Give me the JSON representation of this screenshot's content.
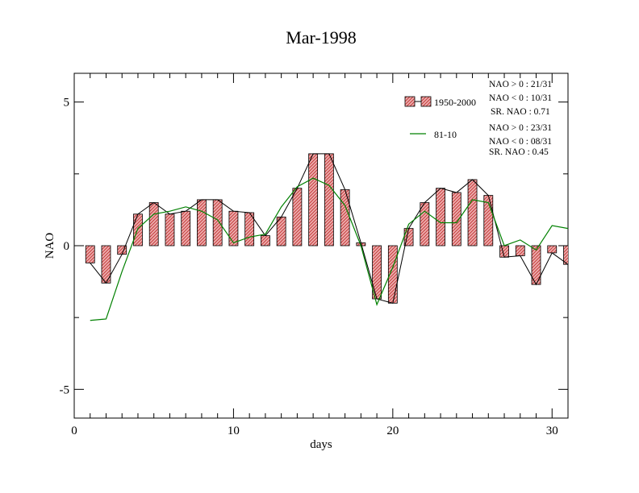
{
  "chart_data": {
    "type": "bar",
    "title": "Mar-1998",
    "xlabel": "days",
    "ylabel": "NAO",
    "xlim": [
      0,
      31
    ],
    "ylim": [
      -6,
      6
    ],
    "xticks": [
      "0",
      "10",
      "20",
      "30"
    ],
    "yticks": [
      "5",
      "0",
      "-5"
    ],
    "grid": false,
    "legend_position": "top-right",
    "colors": {
      "bar_fill": "#e8a0a0",
      "bar_hatch": "#c0392b",
      "line1": "#000000",
      "line2": "#008000"
    },
    "days": [
      1,
      2,
      3,
      4,
      5,
      6,
      7,
      8,
      9,
      10,
      11,
      12,
      13,
      14,
      15,
      16,
      17,
      18,
      19,
      20,
      21,
      22,
      23,
      24,
      25,
      26,
      27,
      28,
      29,
      30,
      31
    ],
    "series": [
      {
        "name": "1950-2000",
        "type": "bar",
        "values": [
          -0.6,
          -1.3,
          -0.3,
          1.1,
          1.5,
          1.1,
          1.2,
          1.6,
          1.6,
          1.2,
          1.15,
          0.35,
          1.0,
          2.0,
          3.2,
          3.2,
          1.95,
          0.1,
          -1.85,
          -2.0,
          0.6,
          1.5,
          2.0,
          1.85,
          2.3,
          1.75,
          -0.4,
          -0.35,
          -1.35,
          -0.25,
          -0.65
        ]
      },
      {
        "name": "81-10",
        "type": "line",
        "values": [
          -2.6,
          -2.55,
          -0.9,
          0.6,
          1.1,
          1.2,
          1.35,
          1.2,
          0.9,
          0.1,
          0.3,
          0.4,
          1.35,
          2.05,
          2.35,
          2.1,
          1.4,
          0.0,
          -2.05,
          -0.75,
          0.75,
          1.2,
          0.8,
          0.8,
          1.6,
          1.5,
          0.0,
          0.2,
          -0.15,
          0.7,
          0.6
        ]
      }
    ],
    "annotations": {
      "group1": [
        "NAO > 0 : 21/31",
        "NAO < 0 : 10/31",
        "SR. NAO :  0.71"
      ],
      "group2": [
        "NAO > 0 : 23/31",
        "NAO < 0 : 08/31",
        "SR. NAO :  0.45"
      ]
    }
  }
}
